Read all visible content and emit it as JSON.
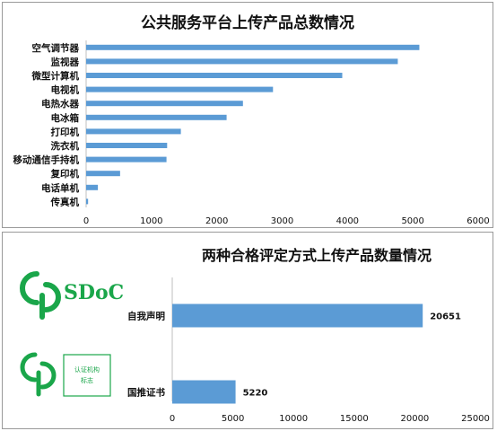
{
  "colors": {
    "bar": "#5b9bd5",
    "axis": "#bfbfbf",
    "logo_green": "#1aa64a"
  },
  "chart_data": [
    {
      "type": "bar",
      "orientation": "horizontal",
      "title": "公共服务平台上传产品总数情况",
      "categories": [
        "空气调节器",
        "监视器",
        "微型计算机",
        "电视机",
        "电热水器",
        "电冰箱",
        "打印机",
        "洗衣机",
        "移动通信手持机",
        "复印机",
        "电话单机",
        "传真机"
      ],
      "values": [
        5100,
        4770,
        3920,
        2860,
        2400,
        2150,
        1450,
        1240,
        1230,
        520,
        180,
        30
      ],
      "xlim": [
        0,
        6000
      ],
      "xticks": [
        "0",
        "1000",
        "2000",
        "3000",
        "4000",
        "5000",
        "6000"
      ],
      "grid": false,
      "legend": "none"
    },
    {
      "type": "bar",
      "orientation": "horizontal",
      "title": "两种合格评定方式上传产品数量情况",
      "categories": [
        "自我声明",
        "国推证书"
      ],
      "values": [
        20651,
        5220
      ],
      "data_labels": [
        "20651",
        "5220"
      ],
      "xlim": [
        0,
        25000
      ],
      "xticks": [
        "0",
        "5000",
        "10000",
        "15000",
        "20000",
        "25000"
      ],
      "grid": false,
      "legend": "none"
    }
  ],
  "logos": {
    "sdoc_text": "SDoC",
    "cert_box_line1": "认证机构",
    "cert_box_line2": "标志"
  }
}
